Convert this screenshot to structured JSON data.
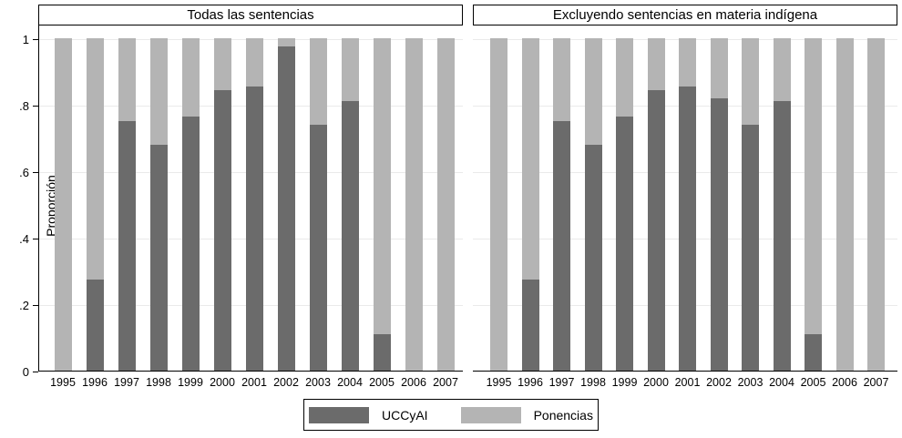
{
  "figure": {
    "background": "#ffffff",
    "bar_dark": "#6b6b6b",
    "bar_light": "#b4b4b4",
    "gridline_color": "#eaeaea"
  },
  "y_axis": {
    "label": "Proporción",
    "tick_labels": [
      "0",
      ".2",
      ".4",
      ".6",
      ".8",
      "1"
    ],
    "tick_values": [
      0,
      0.2,
      0.4,
      0.6,
      0.8,
      1
    ]
  },
  "x_axis": {
    "categories": [
      "1995",
      "1996",
      "1997",
      "1998",
      "1999",
      "2000",
      "2001",
      "2002",
      "2003",
      "2004",
      "2005",
      "2006",
      "2007"
    ]
  },
  "panels": [
    {
      "title": "Todas las sentencias"
    },
    {
      "title": "Excluyendo sentencias en materia indígena"
    }
  ],
  "legend": {
    "items": [
      {
        "label": "UCCyAI",
        "color": "#6b6b6b"
      },
      {
        "label": "Ponencias",
        "color": "#b4b4b4"
      }
    ]
  },
  "chart_data": [
    {
      "type": "bar",
      "stacked": true,
      "title": "Todas las sentencias",
      "xlabel": "",
      "ylabel": "Proporción",
      "ylim": [
        0,
        1
      ],
      "grid": true,
      "categories": [
        "1995",
        "1996",
        "1997",
        "1998",
        "1999",
        "2000",
        "2001",
        "2002",
        "2003",
        "2004",
        "2005",
        "2006",
        "2007"
      ],
      "series": [
        {
          "name": "UCCyAI",
          "color": "#6b6b6b",
          "values": [
            0,
            0.275,
            0.75,
            0.68,
            0.765,
            0.845,
            0.855,
            0.975,
            0.74,
            0.81,
            0.11,
            0,
            0
          ]
        },
        {
          "name": "Ponencias",
          "color": "#b4b4b4",
          "values": [
            1,
            0.725,
            0.25,
            0.32,
            0.235,
            0.155,
            0.145,
            0.025,
            0.26,
            0.19,
            0.89,
            1,
            1
          ]
        }
      ]
    },
    {
      "type": "bar",
      "stacked": true,
      "title": "Excluyendo sentencias en materia indígena",
      "xlabel": "",
      "ylabel": "Proporción",
      "ylim": [
        0,
        1
      ],
      "grid": true,
      "categories": [
        "1995",
        "1996",
        "1997",
        "1998",
        "1999",
        "2000",
        "2001",
        "2002",
        "2003",
        "2004",
        "2005",
        "2006",
        "2007"
      ],
      "series": [
        {
          "name": "UCCyAI",
          "color": "#6b6b6b",
          "values": [
            0,
            0.275,
            0.75,
            0.68,
            0.765,
            0.845,
            0.855,
            0.82,
            0.74,
            0.81,
            0.11,
            0,
            0
          ]
        },
        {
          "name": "Ponencias",
          "color": "#b4b4b4",
          "values": [
            1,
            0.725,
            0.25,
            0.32,
            0.235,
            0.155,
            0.145,
            0.18,
            0.26,
            0.19,
            0.89,
            1,
            1
          ]
        }
      ]
    }
  ]
}
